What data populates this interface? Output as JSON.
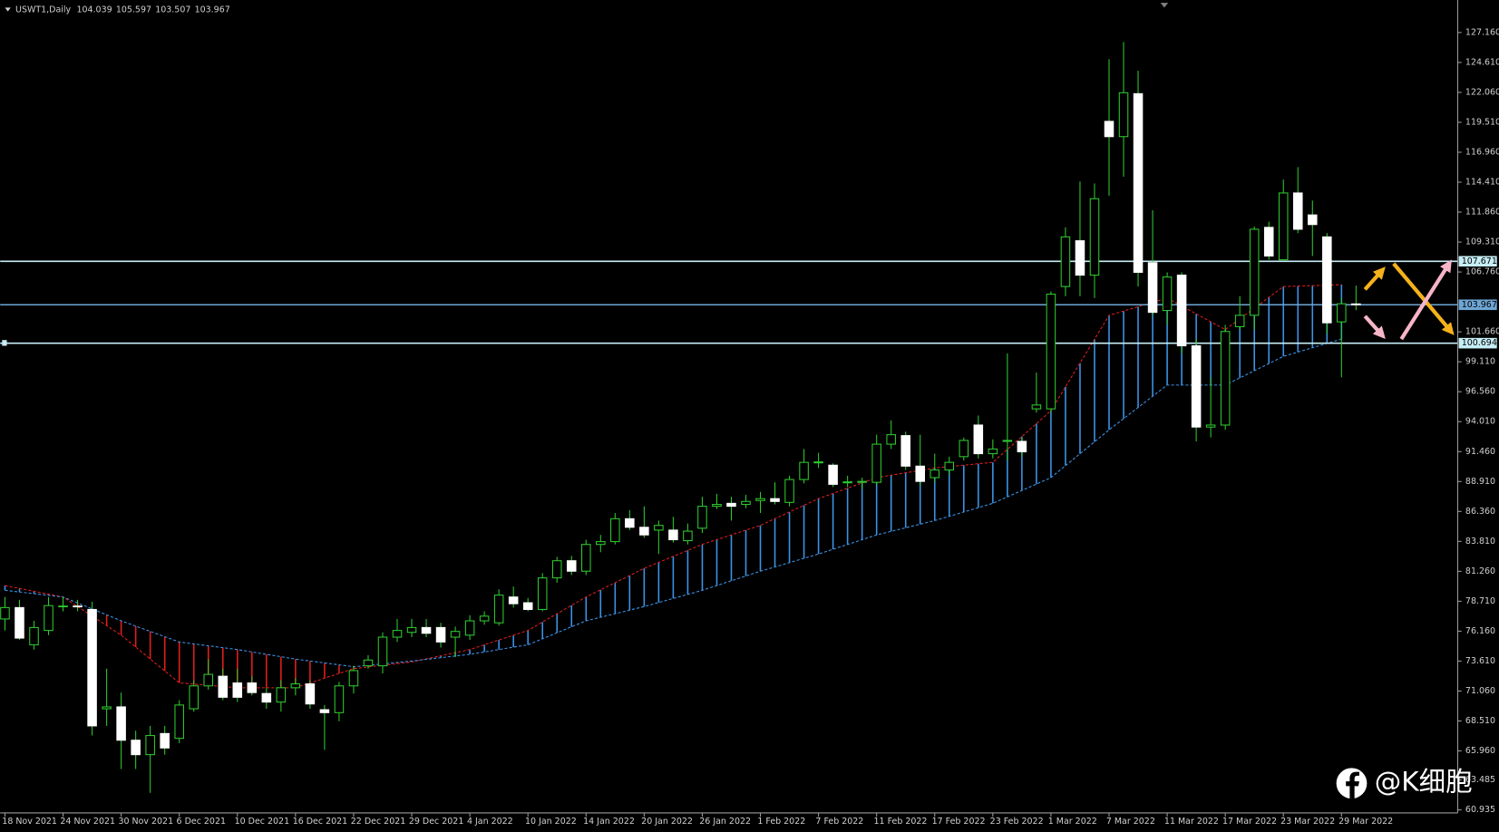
{
  "chart_data": {
    "type": "candlestick",
    "symbol": "USWT1,Daily",
    "categories": [
      "18 Nov 2021",
      null,
      null,
      null,
      "24 Nov 2021",
      null,
      null,
      null,
      "30 Nov 2021",
      null,
      null,
      null,
      "6 Dec 2021",
      null,
      null,
      null,
      "10 Dec 2021",
      null,
      null,
      null,
      "16 Dec 2021",
      null,
      null,
      null,
      "22 Dec 2021",
      null,
      null,
      null,
      "29 Dec 2021",
      null,
      null,
      null,
      "4 Jan 2022",
      null,
      null,
      null,
      "10 Jan 2022",
      null,
      null,
      null,
      "14 Jan 2022",
      null,
      null,
      null,
      "20 Jan 2022",
      null,
      null,
      null,
      "26 Jan 2022",
      null,
      null,
      null,
      "1 Feb 2022",
      null,
      null,
      null,
      "7 Feb 2022",
      null,
      null,
      null,
      "11 Feb 2022",
      null,
      null,
      null,
      "17 Feb 2022",
      null,
      null,
      null,
      "23 Feb 2022",
      null,
      null,
      null,
      "1 Mar 2022",
      null,
      null,
      null,
      "7 Mar 2022",
      null,
      null,
      null,
      "11 Mar 2022",
      null,
      null,
      null,
      "17 Mar 2022",
      null,
      null,
      null,
      "23 Mar 2022",
      null,
      null,
      null,
      "29 Mar 2022",
      null
    ],
    "open": [
      77.2,
      78.17,
      75.0,
      76.22,
      78.26,
      78.3,
      78.01,
      69.55,
      69.71,
      66.87,
      65.64,
      67.44,
      67.03,
      69.55,
      71.5,
      72.32,
      71.75,
      71.75,
      70.85,
      70.12,
      71.34,
      71.67,
      69.47,
      69.22,
      71.5,
      73.21,
      73.21,
      75.65,
      76.06,
      76.47,
      76.47,
      75.65,
      75.82,
      77.04,
      76.87,
      79.07,
      78.58,
      78.01,
      80.7,
      82.16,
      81.27,
      83.55,
      83.79,
      85.74,
      85.01,
      84.77,
      84.77,
      83.87,
      84.93,
      86.8,
      87.05,
      86.96,
      87.29,
      87.45,
      87.13,
      89.08,
      90.5,
      90.3,
      88.8,
      88.84,
      88.84,
      92.09,
      92.82,
      90.22,
      89.24,
      89.89,
      91.03,
      93.72,
      91.28,
      92.33,
      92.33,
      95.1,
      95.1,
      105.52,
      109.42,
      106.49,
      119.59,
      118.29,
      121.95,
      107.55,
      103.48,
      106.49,
      100.47,
      93.55,
      93.72,
      102.1,
      103.07,
      110.56,
      107.8,
      113.49,
      111.62,
      109.75,
      102.51,
      104.039
    ],
    "high": [
      79.07,
      78.83,
      77.04,
      79.07,
      79.07,
      78.83,
      78.66,
      72.97,
      70.93,
      67.68,
      68.09,
      68.09,
      70.28,
      71.99,
      73.78,
      72.97,
      72.97,
      72.32,
      71.34,
      71.99,
      72.15,
      71.99,
      69.87,
      71.84,
      73.21,
      74.11,
      76.06,
      77.2,
      77.2,
      77.2,
      76.87,
      76.55,
      77.52,
      77.85,
      79.72,
      79.96,
      78.99,
      81.11,
      82.49,
      82.57,
      83.95,
      84.36,
      86.23,
      86.47,
      86.8,
      85.58,
      85.9,
      85.33,
      87.61,
      87.86,
      87.61,
      87.77,
      88.02,
      88.84,
      89.4,
      91.68,
      91.36,
      90.46,
      89.4,
      89.24,
      92.9,
      94.12,
      93.15,
      92.9,
      91.28,
      91.03,
      92.66,
      94.53,
      92.5,
      99.82,
      92.66,
      98.19,
      105.11,
      110.56,
      114.47,
      114.3,
      124.88,
      126.35,
      123.9,
      112.02,
      106.73,
      106.73,
      101.04,
      97.78,
      102.26,
      104.7,
      110.64,
      111.05,
      114.63,
      115.69,
      112.84,
      110.07,
      104.54,
      105.597
    ],
    "low": [
      76.22,
      75.41,
      74.59,
      75.82,
      77.85,
      77.85,
      67.27,
      68.09,
      64.42,
      64.42,
      62.39,
      65.64,
      66.62,
      69.3,
      71.18,
      70.28,
      70.12,
      70.69,
      69.55,
      69.3,
      70.69,
      69.55,
      66.05,
      68.49,
      70.85,
      72.97,
      72.56,
      75.24,
      75.65,
      75.65,
      74.76,
      73.94,
      75.41,
      76.71,
      76.63,
      78.17,
      77.85,
      77.85,
      80.29,
      80.94,
      80.94,
      82.89,
      83.55,
      84.77,
      84.11,
      82.73,
      83.71,
      83.55,
      84.52,
      86.56,
      85.58,
      86.64,
      86.23,
      86.96,
      86.8,
      88.75,
      90.06,
      88.43,
      88.43,
      88.27,
      88.59,
      91.68,
      89.89,
      88.59,
      88.84,
      89.49,
      90.7,
      90.87,
      90.87,
      90.7,
      91.03,
      94.78,
      94.78,
      104.7,
      104.7,
      104.54,
      113.25,
      114.87,
      105.52,
      103.07,
      102.26,
      99.82,
      92.33,
      92.66,
      93.31,
      101.85,
      101.85,
      107.8,
      107.8,
      110.07,
      108.12,
      101.45,
      97.78,
      103.507
    ],
    "close": [
      78.17,
      75.57,
      76.47,
      78.34,
      78.3,
      78.26,
      68.09,
      69.71,
      66.87,
      65.64,
      67.27,
      66.21,
      69.87,
      71.5,
      72.48,
      70.53,
      70.53,
      70.93,
      70.12,
      71.34,
      71.67,
      69.96,
      69.22,
      71.5,
      72.8,
      73.7,
      75.65,
      76.22,
      76.47,
      75.98,
      75.24,
      76.14,
      77.04,
      77.44,
      79.23,
      78.5,
      78.01,
      80.7,
      82.16,
      81.27,
      83.55,
      83.79,
      85.74,
      85.01,
      84.36,
      85.17,
      83.95,
      84.68,
      86.8,
      86.96,
      86.8,
      87.21,
      87.45,
      87.21,
      89.08,
      90.54,
      90.58,
      88.67,
      88.88,
      88.92,
      92.09,
      92.9,
      90.22,
      88.92,
      89.89,
      90.54,
      92.41,
      91.28,
      91.68,
      92.41,
      91.44,
      95.43,
      104.87,
      109.75,
      106.49,
      113.0,
      118.29,
      122.03,
      106.73,
      103.32,
      106.33,
      100.47,
      93.55,
      93.72,
      101.69,
      103.07,
      110.4,
      108.12,
      113.49,
      110.4,
      110.8,
      102.43,
      104.05,
      103.967
    ],
    "up_color": "#000000",
    "down_color": "#ffffff",
    "wick_color": "#2fc92f",
    "span_x": [
      0,
      4,
      8,
      12,
      16,
      20,
      24,
      28,
      32,
      36,
      40,
      44,
      48,
      52,
      56,
      60,
      64,
      68,
      72,
      76,
      80,
      84,
      88,
      92
    ],
    "spans": [
      {
        "color": "#e01e1e",
        "values": [
          80.05,
          79.07,
          75.82,
          71.75,
          71.34,
          71.34,
          72.97,
          73.54,
          74.59,
          76.22,
          79.07,
          81.51,
          83.55,
          85.17,
          87.45,
          89.24,
          90.06,
          90.54,
          94.94,
          103.07,
          104.54,
          101.85,
          105.52,
          105.68
        ]
      },
      {
        "color": "#3c93e6",
        "values": [
          79.64,
          79.07,
          77.04,
          75.24,
          74.59,
          73.78,
          73.13,
          73.62,
          74.19,
          75.0,
          77.04,
          78.26,
          79.64,
          81.27,
          82.73,
          84.36,
          85.58,
          87.05,
          89.24,
          93.31,
          97.13,
          97.13,
          99.57,
          101.04
        ]
      }
    ],
    "levels": [
      {
        "value": 107.671,
        "color": "#c6eef6"
      },
      {
        "value": 103.967,
        "color": "#6ea6d4"
      },
      {
        "value": 100.694,
        "color": "#c6eef6"
      }
    ],
    "ylim": [
      60.76,
      129.93
    ],
    "yticks": [
      {
        "value": 127.16,
        "label": "127.160"
      },
      {
        "value": 124.61,
        "label": "124.610"
      },
      {
        "value": 122.06,
        "label": "122.060"
      },
      {
        "value": 119.51,
        "label": "119.510"
      },
      {
        "value": 116.96,
        "label": "116.960"
      },
      {
        "value": 114.41,
        "label": "114.410"
      },
      {
        "value": 111.86,
        "label": "111.860"
      },
      {
        "value": 109.31,
        "label": "109.310"
      },
      {
        "value": 106.76,
        "label": "106.760"
      },
      {
        "value": 101.66,
        "label": "101.660"
      },
      {
        "value": 99.11,
        "label": "99.110"
      },
      {
        "value": 96.56,
        "label": "96.560"
      },
      {
        "value": 94.01,
        "label": "94.010"
      },
      {
        "value": 91.46,
        "label": "91.460"
      },
      {
        "value": 88.91,
        "label": "88.910"
      },
      {
        "value": 86.36,
        "label": "86.360"
      },
      {
        "value": 83.81,
        "label": "83.810"
      },
      {
        "value": 81.26,
        "label": "81.260"
      },
      {
        "value": 78.71,
        "label": "78.710"
      },
      {
        "value": 76.16,
        "label": "76.160"
      },
      {
        "value": 73.61,
        "label": "73.610"
      },
      {
        "value": 71.06,
        "label": "71.060"
      },
      {
        "value": 68.51,
        "label": "68.510"
      },
      {
        "value": 65.96,
        "label": "65.960"
      },
      63.485,
      60.935
    ],
    "watermark": "@K细胞"
  }
}
